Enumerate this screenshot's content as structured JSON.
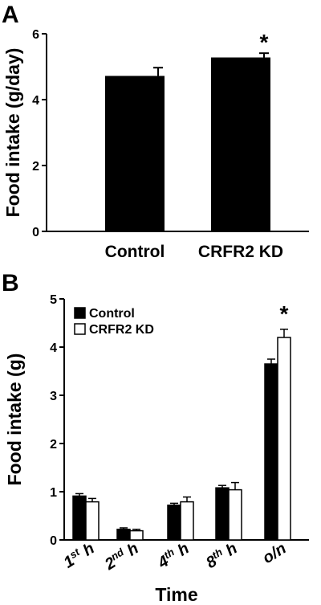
{
  "chart_data": [
    {
      "panel": "A",
      "type": "bar",
      "categories": [
        "Control",
        "CRFR2 KD"
      ],
      "values": [
        4.72,
        5.28
      ],
      "errors": [
        0.25,
        0.13
      ],
      "significance": [
        "",
        "*"
      ],
      "ylabel": "Food intake (g/day)",
      "xlabel": "",
      "ylim": [
        0,
        6
      ],
      "yticks": [
        0,
        2,
        4,
        6
      ],
      "bar_color": "#000000"
    },
    {
      "panel": "B",
      "type": "bar",
      "categories": [
        "1st h",
        "2nd h",
        "4th h",
        "8th h",
        "o/n"
      ],
      "category_parts": [
        {
          "base": "1",
          "sup": "st",
          "rest": " h"
        },
        {
          "base": "2",
          "sup": "nd",
          "rest": " h"
        },
        {
          "base": "4",
          "sup": "th",
          "rest": " h"
        },
        {
          "base": "8",
          "sup": "th",
          "rest": " h"
        },
        {
          "base": "o/n",
          "sup": "",
          "rest": ""
        }
      ],
      "series": [
        {
          "name": "Control",
          "values": [
            0.91,
            0.22,
            0.72,
            1.08,
            3.65
          ],
          "errors": [
            0.05,
            0.03,
            0.04,
            0.05,
            0.1
          ],
          "fill": "#000000"
        },
        {
          "name": "CRFR2 KD",
          "values": [
            0.79,
            0.19,
            0.79,
            1.04,
            4.2
          ],
          "errors": [
            0.07,
            0.03,
            0.1,
            0.15,
            0.17
          ],
          "fill": "#ffffff"
        }
      ],
      "significance": [
        "",
        "",
        "",
        "",
        "*"
      ],
      "ylabel": "Food intake (g)",
      "xlabel": "Time",
      "ylim": [
        0,
        5
      ],
      "yticks": [
        0,
        1,
        2,
        3,
        4,
        5
      ],
      "legend_position": "top-left"
    }
  ]
}
